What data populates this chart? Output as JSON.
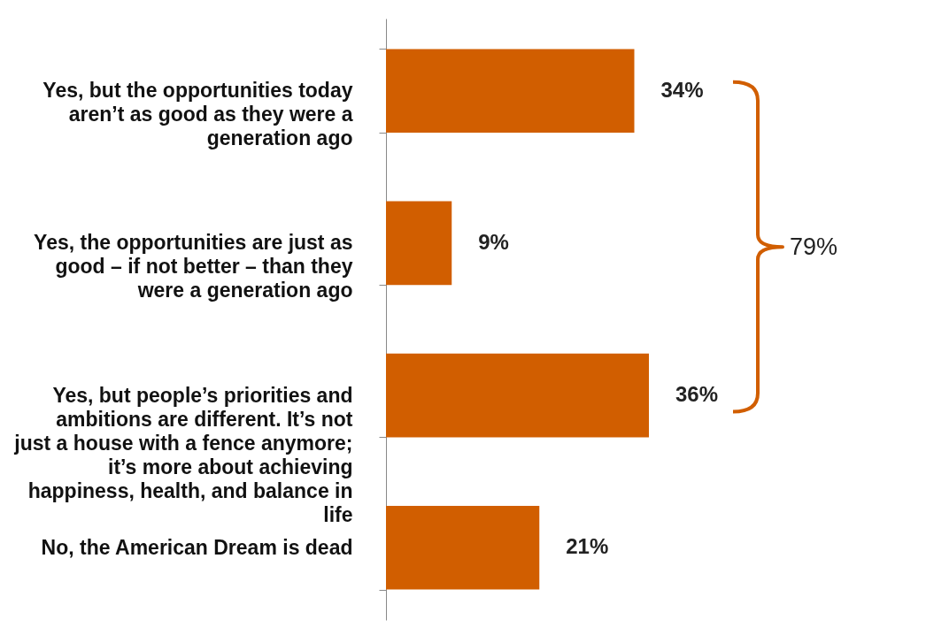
{
  "chart_data": {
    "type": "bar",
    "orientation": "horizontal",
    "categories": [
      "Yes, but the opportunities today aren’t as good as they were a generation ago",
      "Yes, the opportunities are just as good – if not better – than they were a generation ago",
      "Yes, but people’s priorities and ambitions are different. It’s not just a house with a fence anymore; it’s more about achieving happiness, health, and balance in life",
      "No, the American Dream is dead"
    ],
    "values": [
      34,
      9,
      36,
      21
    ],
    "value_labels": [
      "34%",
      "9%",
      "36%",
      "21%"
    ],
    "color": "#d15e00",
    "annotations": [
      "79%"
    ]
  }
}
